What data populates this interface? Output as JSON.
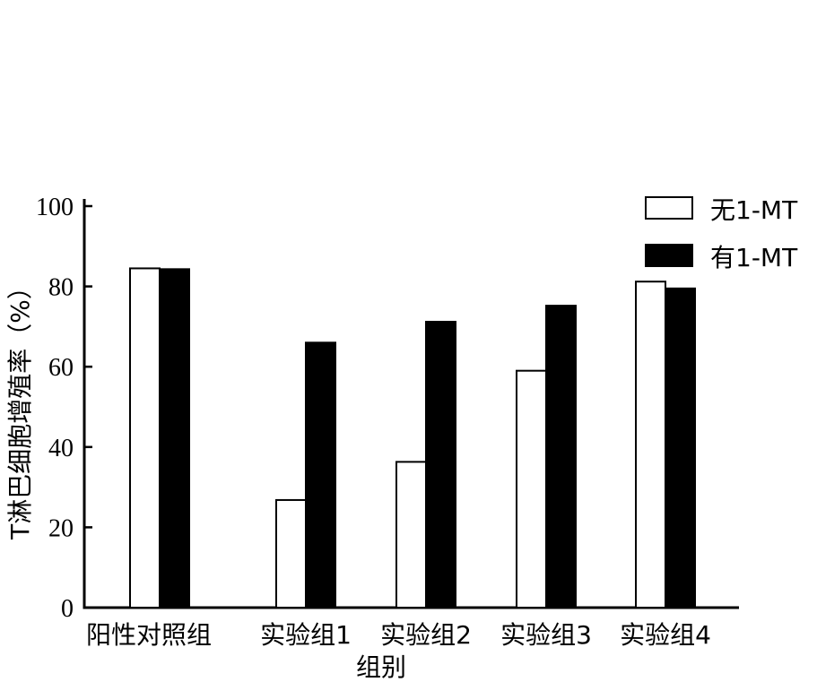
{
  "chart_data": {
    "type": "bar",
    "title": "",
    "xlabel": "组别",
    "ylabel": "T淋巴细胞增殖率（%）",
    "ylim": [
      0,
      100
    ],
    "yticks": [
      0,
      20,
      40,
      60,
      80,
      100
    ],
    "grid": false,
    "legend_position": "top-right",
    "categories": [
      "阳性对照组",
      "实验组1",
      "实验组2",
      "实验组3",
      "实验组4"
    ],
    "series": [
      {
        "name": "无1-MT",
        "fill": "#ffffff",
        "values": [
          84.5,
          26.8,
          36.3,
          59.0,
          81.2
        ]
      },
      {
        "name": "有1-MT",
        "fill": "#000000",
        "values": [
          84.3,
          66.0,
          71.2,
          75.2,
          79.5
        ]
      }
    ]
  }
}
